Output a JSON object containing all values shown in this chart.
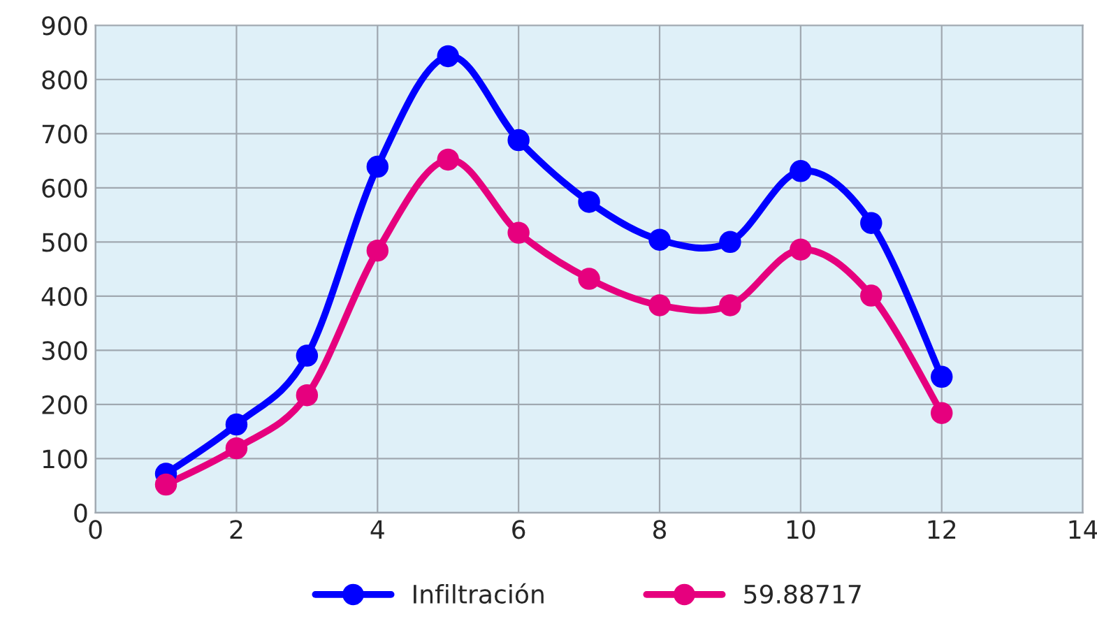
{
  "chart_data": {
    "type": "line",
    "x": [
      1,
      2,
      3,
      4,
      5,
      6,
      7,
      8,
      9,
      10,
      11,
      12
    ],
    "series": [
      {
        "name": "Infiltración",
        "color": "#0000ff",
        "values": [
          72,
          163,
          290,
          639,
          843,
          688,
          574,
          504,
          500,
          631,
          535,
          251
        ]
      },
      {
        "name": "59.88717",
        "color": "#e6007e",
        "values": [
          52,
          119,
          217,
          484,
          652,
          517,
          432,
          383,
          383,
          486,
          401,
          184
        ]
      }
    ],
    "xlim": [
      0,
      14
    ],
    "xticks": [
      0,
      2,
      4,
      6,
      8,
      10,
      12,
      14
    ],
    "ylim": [
      0,
      900
    ],
    "yticks": [
      0,
      100,
      200,
      300,
      400,
      500,
      600,
      700,
      800,
      900
    ],
    "grid": true,
    "legend": "bottom",
    "marker": "circle",
    "line_style": "solid"
  }
}
